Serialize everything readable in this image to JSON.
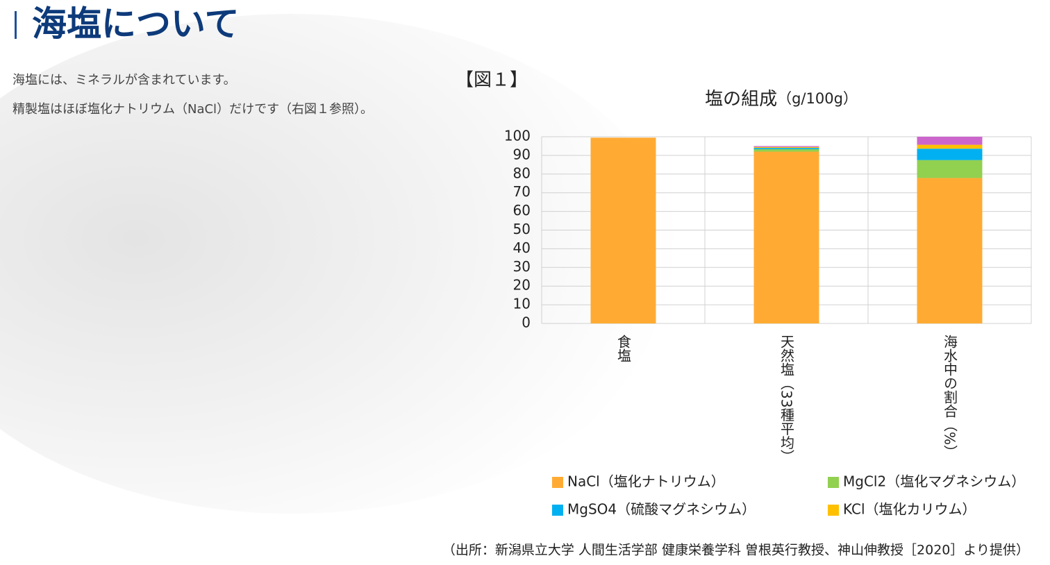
{
  "header": {
    "title": "海塩について"
  },
  "body": {
    "lines": [
      "海塩には、ミネラルが含まれています。",
      "精製塩はほぼ塩化ナトリウム（NaCl）だけです（右図１参照）。"
    ],
    "figure_label": "【図１】"
  },
  "source": "（出所：新潟県立大学 人間生活学部 健康栄養学科 曽根英行教授、神山伸教授［2020］より提供）",
  "chart_data": {
    "type": "stacked_bar",
    "title": "塩の組成",
    "subtitle": "（g/100g）",
    "categories": [
      "食塩",
      "天然塩（33種平均）",
      "海水中の割合（%）"
    ],
    "series": [
      {
        "name": "NaCl（塩化ナトリウム）",
        "color": "#ffab33",
        "values": [
          99.5,
          92.0,
          77.9
        ]
      },
      {
        "name": "MgCl2（塩化マグネシウム）",
        "color": "#92d050",
        "values": [
          0,
          1.3,
          9.6
        ]
      },
      {
        "name": "MgSO4（硫酸マグネシウム）",
        "color": "#00b0f0",
        "values": [
          0,
          0.7,
          6.1
        ]
      },
      {
        "name": "KCl（塩化カリウム）",
        "color": "#ffc000",
        "values": [
          0,
          0.5,
          2.1
        ]
      },
      {
        "name": null,
        "color": "#cc66cc",
        "values": [
          0,
          0.5,
          4.3
        ]
      }
    ],
    "ylim": [
      0,
      100
    ],
    "yticks": [
      0,
      10,
      20,
      30,
      40,
      50,
      60,
      70,
      80,
      90,
      100
    ],
    "grid": true
  }
}
